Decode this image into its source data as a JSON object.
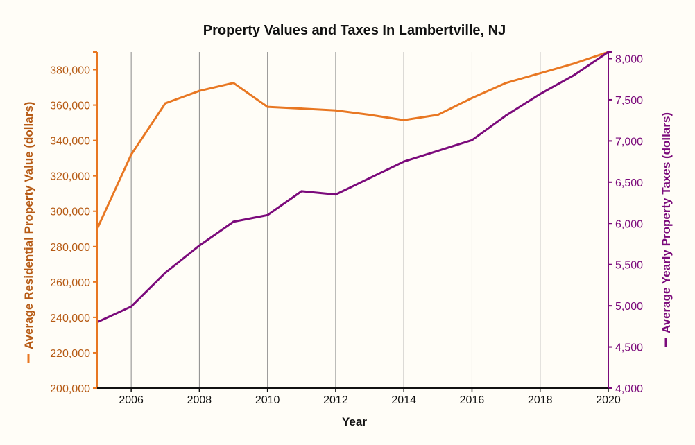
{
  "chart_data": {
    "type": "line",
    "title": "Property Values and Taxes In Lambertville, NJ",
    "xlabel": "Year",
    "x": [
      2005,
      2006,
      2007,
      2008,
      2009,
      2010,
      2011,
      2012,
      2013,
      2014,
      2015,
      2016,
      2017,
      2018,
      2019,
      2020
    ],
    "xlim": [
      2005,
      2020
    ],
    "xticks": [
      "2006",
      "2008",
      "2010",
      "2012",
      "2014",
      "2016",
      "2018",
      "2020"
    ],
    "grid": "vertical",
    "series": [
      {
        "name": "Average Residential Property Value (dollars)",
        "axis": "left",
        "color": "#e87722",
        "values": [
          290000,
          332000,
          361000,
          368000,
          372500,
          359000,
          358000,
          357000,
          354500,
          351500,
          354500,
          364000,
          372500,
          378000,
          383500,
          390000
        ]
      },
      {
        "name": "Average Yearly Property Taxes (dollars)",
        "axis": "right",
        "color": "#7b0a7b",
        "values": [
          4800,
          4990,
          5400,
          5730,
          6020,
          6100,
          6390,
          6350,
          6550,
          6750,
          6880,
          7010,
          7310,
          7570,
          7800,
          8080
        ]
      }
    ],
    "y_left": {
      "label": "Average Residential Property Value (dollars)",
      "color": "#e87722",
      "text_color": "#b65a14",
      "ylim": [
        200000,
        390000
      ],
      "ticks": [
        "200,000",
        "220,000",
        "240,000",
        "260,000",
        "280,000",
        "300,000",
        "320,000",
        "340,000",
        "360,000",
        "380,000"
      ]
    },
    "y_right": {
      "label": "Average Yearly Property Taxes (dollars)",
      "color": "#7b0a7b",
      "text_color": "#7b0a7b",
      "ylim": [
        4000,
        8080
      ],
      "ticks": [
        "4,000",
        "4,500",
        "5,000",
        "5,500",
        "6,000",
        "6,500",
        "7,000",
        "7,500",
        "8,000"
      ]
    }
  }
}
